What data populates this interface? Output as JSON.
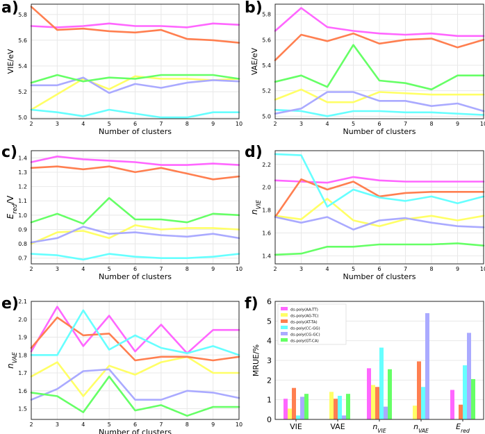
{
  "figure": {
    "background": "#ffffff"
  },
  "chart_data": [
    {
      "id": "a",
      "panel_label": "a)",
      "type": "line",
      "xlabel": "Number of clusters",
      "ylabel": "VIE/eV",
      "ylabel_rotated": true,
      "xlim": [
        2,
        10
      ],
      "ylim": [
        4.99,
        5.88
      ],
      "xticks": [
        "2",
        "3",
        "4",
        "5",
        "6",
        "7",
        "8",
        "9",
        "10"
      ],
      "yticks": [
        "5.0",
        "5.2",
        "5.4",
        "5.6",
        "5.8"
      ],
      "yticks_values": [
        5.0,
        5.2,
        5.4,
        5.6,
        5.8
      ],
      "x": [
        2,
        3,
        4,
        5,
        6,
        7,
        8,
        9,
        10
      ],
      "series": [
        {
          "name": "ds-poly(AA-TT)",
          "color": "#ff66ff",
          "values": [
            5.71,
            5.7,
            5.71,
            5.73,
            5.71,
            5.71,
            5.7,
            5.73,
            5.72
          ]
        },
        {
          "name": "ds-poly(AG-TC)",
          "color": "#ffff66",
          "values": [
            5.06,
            5.18,
            5.3,
            5.22,
            5.32,
            5.3,
            5.3,
            5.29,
            5.3
          ]
        },
        {
          "name": "ds-poly(AT-TA)",
          "color": "#ff7f50",
          "values": [
            5.86,
            5.68,
            5.69,
            5.67,
            5.66,
            5.68,
            5.61,
            5.6,
            5.58
          ]
        },
        {
          "name": "ds-poly(CC-GG)",
          "color": "#66ffff",
          "values": [
            5.06,
            5.04,
            5.01,
            5.06,
            5.03,
            5.0,
            5.0,
            5.04,
            5.04
          ]
        },
        {
          "name": "ds-poly(CG-GC)",
          "color": "#aaaaff",
          "values": [
            5.25,
            5.25,
            5.31,
            5.19,
            5.26,
            5.23,
            5.27,
            5.29,
            5.28
          ]
        },
        {
          "name": "ds-poly(GT-CA)",
          "color": "#66ff66",
          "values": [
            5.27,
            5.33,
            5.28,
            5.31,
            5.3,
            5.33,
            5.33,
            5.33,
            5.3
          ]
        }
      ]
    },
    {
      "id": "b",
      "panel_label": "b)",
      "type": "line",
      "xlabel": "Number of clusters",
      "ylabel": "VAE/eV",
      "ylabel_rotated": true,
      "xlim": [
        2,
        10
      ],
      "ylim": [
        4.98,
        5.88
      ],
      "xticks": [
        "2",
        "3",
        "4",
        "5",
        "6",
        "7",
        "8",
        "9",
        "10"
      ],
      "yticks": [
        "5.0",
        "5.2",
        "5.4",
        "5.6",
        "5.8"
      ],
      "yticks_values": [
        5.0,
        5.2,
        5.4,
        5.6,
        5.8
      ],
      "x": [
        2,
        3,
        4,
        5,
        6,
        7,
        8,
        9,
        10
      ],
      "series": [
        {
          "name": "ds-poly(AA-TT)",
          "color": "#ff66ff",
          "values": [
            5.67,
            5.85,
            5.7,
            5.67,
            5.65,
            5.64,
            5.65,
            5.63,
            5.63
          ]
        },
        {
          "name": "ds-poly(AG-TC)",
          "color": "#ffff66",
          "values": [
            5.13,
            5.21,
            5.11,
            5.11,
            5.19,
            5.18,
            5.17,
            5.17,
            5.17
          ]
        },
        {
          "name": "ds-poly(AT-TA)",
          "color": "#ff7f50",
          "values": [
            5.44,
            5.64,
            5.59,
            5.65,
            5.57,
            5.6,
            5.61,
            5.54,
            5.6
          ]
        },
        {
          "name": "ds-poly(CC-GG)",
          "color": "#66ffff",
          "values": [
            5.05,
            5.04,
            5.0,
            5.04,
            5.04,
            5.03,
            5.03,
            5.02,
            5.01
          ]
        },
        {
          "name": "ds-poly(CG-GC)",
          "color": "#aaaaff",
          "values": [
            5.02,
            5.06,
            5.19,
            5.19,
            5.12,
            5.12,
            5.08,
            5.1,
            5.04
          ]
        },
        {
          "name": "ds-poly(GT-CA)",
          "color": "#66ff66",
          "values": [
            5.27,
            5.32,
            5.23,
            5.56,
            5.28,
            5.26,
            5.21,
            5.32,
            5.32
          ]
        }
      ]
    },
    {
      "id": "c",
      "panel_label": "c)",
      "type": "line",
      "xlabel": "Number of clusters",
      "ylabel_main": "E",
      "ylabel_sub": "red",
      "ylabel_suffix": "/V",
      "ylabel_rotated": true,
      "xlim": [
        2,
        10
      ],
      "ylim": [
        0.66,
        1.45
      ],
      "xticks": [
        "2",
        "3",
        "4",
        "5",
        "6",
        "7",
        "8",
        "9",
        "10"
      ],
      "yticks": [
        "0.7",
        "0.8",
        "0.9",
        "1.0",
        "1.1",
        "1.2",
        "1.3",
        "1.4"
      ],
      "yticks_values": [
        0.7,
        0.8,
        0.9,
        1.0,
        1.1,
        1.2,
        1.3,
        1.4
      ],
      "x": [
        2,
        3,
        4,
        5,
        6,
        7,
        8,
        9,
        10
      ],
      "series": [
        {
          "name": "ds-poly(AA-TT)",
          "color": "#ff66ff",
          "values": [
            1.37,
            1.41,
            1.39,
            1.38,
            1.37,
            1.35,
            1.35,
            1.36,
            1.35
          ]
        },
        {
          "name": "ds-poly(AG-TC)",
          "color": "#ffff66",
          "values": [
            0.8,
            0.88,
            0.89,
            0.84,
            0.93,
            0.9,
            0.91,
            0.91,
            0.9
          ]
        },
        {
          "name": "ds-poly(AT-TA)",
          "color": "#ff7f50",
          "values": [
            1.33,
            1.34,
            1.32,
            1.34,
            1.3,
            1.33,
            1.29,
            1.25,
            1.27
          ]
        },
        {
          "name": "ds-poly(CC-GG)",
          "color": "#66ffff",
          "values": [
            0.73,
            0.72,
            0.69,
            0.73,
            0.71,
            0.7,
            0.7,
            0.71,
            0.73
          ]
        },
        {
          "name": "ds-poly(CG-GC)",
          "color": "#aaaaff",
          "values": [
            0.81,
            0.84,
            0.92,
            0.87,
            0.88,
            0.86,
            0.85,
            0.87,
            0.84
          ]
        },
        {
          "name": "ds-poly(GT-CA)",
          "color": "#66ff66",
          "values": [
            0.95,
            1.01,
            0.94,
            1.12,
            0.97,
            0.97,
            0.95,
            1.01,
            1.0
          ]
        }
      ]
    },
    {
      "id": "d",
      "panel_label": "d)",
      "type": "line",
      "xlabel": "Number of clusters",
      "ylabel_main": "n",
      "ylabel_sub": "VIE",
      "ylabel_rotated": true,
      "xlim": [
        2,
        10
      ],
      "ylim": [
        1.33,
        2.32
      ],
      "xticks": [
        "2",
        "3",
        "4",
        "5",
        "6",
        "7",
        "8",
        "9",
        "10"
      ],
      "yticks": [
        "1.4",
        "1.6",
        "1.8",
        "2.0",
        "2.2"
      ],
      "yticks_values": [
        1.4,
        1.6,
        1.8,
        2.0,
        2.2
      ],
      "x": [
        2,
        3,
        4,
        5,
        6,
        7,
        8,
        9,
        10
      ],
      "series": [
        {
          "name": "ds-poly(AA-TT)",
          "color": "#ff66ff",
          "values": [
            2.06,
            2.05,
            2.04,
            2.09,
            2.06,
            2.05,
            2.05,
            2.05,
            2.05
          ]
        },
        {
          "name": "ds-poly(AG-TC)",
          "color": "#ffff66",
          "values": [
            1.75,
            1.72,
            1.9,
            1.71,
            1.66,
            1.72,
            1.75,
            1.71,
            1.75
          ]
        },
        {
          "name": "ds-poly(AT-TA)",
          "color": "#ff7f50",
          "values": [
            1.74,
            2.07,
            1.98,
            2.05,
            1.92,
            1.95,
            1.96,
            1.96,
            1.96
          ]
        },
        {
          "name": "ds-poly(CC-GG)",
          "color": "#66ffff",
          "values": [
            2.29,
            2.28,
            1.83,
            1.98,
            1.91,
            1.88,
            1.92,
            1.86,
            1.92
          ]
        },
        {
          "name": "ds-poly(CG-GC)",
          "color": "#aaaaff",
          "values": [
            1.74,
            1.69,
            1.74,
            1.63,
            1.71,
            1.73,
            1.69,
            1.66,
            1.65
          ]
        },
        {
          "name": "ds-poly(GT-CA)",
          "color": "#66ff66",
          "values": [
            1.41,
            1.42,
            1.48,
            1.48,
            1.5,
            1.5,
            1.5,
            1.51,
            1.49
          ]
        }
      ]
    },
    {
      "id": "e",
      "panel_label": "e)",
      "type": "line",
      "xlabel": "Number of clusters",
      "ylabel_main": "n",
      "ylabel_sub": "VAE",
      "ylabel_rotated": true,
      "xlim": [
        2,
        10
      ],
      "ylim": [
        1.44,
        2.1
      ],
      "xticks": [
        "2",
        "3",
        "4",
        "5",
        "6",
        "7",
        "8",
        "9",
        "10"
      ],
      "yticks": [
        "1.5",
        "1.6",
        "1.7",
        "1.8",
        "1.9",
        "2.0",
        "2.1"
      ],
      "yticks_values": [
        1.5,
        1.6,
        1.7,
        1.8,
        1.9,
        2.0,
        2.1
      ],
      "x": [
        2,
        3,
        4,
        5,
        6,
        7,
        8,
        9,
        10
      ],
      "series": [
        {
          "name": "ds-poly(AA-TT)",
          "color": "#ff66ff",
          "values": [
            1.82,
            2.07,
            1.85,
            2.02,
            1.82,
            1.97,
            1.81,
            1.94,
            1.94
          ]
        },
        {
          "name": "ds-poly(AG-TC)",
          "color": "#ffff66",
          "values": [
            1.68,
            1.76,
            1.57,
            1.74,
            1.69,
            1.76,
            1.79,
            1.7,
            1.7
          ]
        },
        {
          "name": "ds-poly(AT-TA)",
          "color": "#ff7f50",
          "values": [
            1.84,
            2.01,
            1.91,
            1.92,
            1.77,
            1.79,
            1.79,
            1.77,
            1.79
          ]
        },
        {
          "name": "ds-poly(CC-GG)",
          "color": "#66ffff",
          "values": [
            1.8,
            1.8,
            2.05,
            1.83,
            1.91,
            1.84,
            1.81,
            1.85,
            1.8
          ]
        },
        {
          "name": "ds-poly(CG-GC)",
          "color": "#aaaaff",
          "values": [
            1.55,
            1.61,
            1.71,
            1.72,
            1.55,
            1.55,
            1.6,
            1.59,
            1.56
          ]
        },
        {
          "name": "ds-poly(GT-CA)",
          "color": "#66ff66",
          "values": [
            1.59,
            1.57,
            1.48,
            1.68,
            1.49,
            1.52,
            1.46,
            1.51,
            1.51
          ]
        }
      ]
    },
    {
      "id": "f",
      "panel_label": "f)",
      "type": "bar",
      "ylabel": "MRUE/%",
      "ylabel_rotated": true,
      "ylim": [
        0,
        6
      ],
      "yticks": [
        "0",
        "1",
        "2",
        "3",
        "4",
        "5",
        "6"
      ],
      "yticks_values": [
        0,
        1,
        2,
        3,
        4,
        5,
        6
      ],
      "category_ticks": [
        {
          "main": "VIE"
        },
        {
          "main": "VAE"
        },
        {
          "main": "n",
          "sub": "VIE",
          "italic": true
        },
        {
          "main": "n",
          "sub": "VAE",
          "italic": true
        },
        {
          "main": "E",
          "sub": "red",
          "italic": true
        }
      ],
      "legend_placement": "top-left",
      "series": [
        {
          "name": "ds-poly(AA-TT)",
          "color": "#ff66ff",
          "values": [
            1.05,
            0.0,
            2.6,
            0.0,
            1.5
          ]
        },
        {
          "name": "ds-poly(AG-TC)",
          "color": "#ffff66",
          "values": [
            0.55,
            1.4,
            1.75,
            0.7,
            0.0
          ]
        },
        {
          "name": "ds-poly(AT-TA)",
          "color": "#ff7f50",
          "values": [
            1.6,
            1.05,
            1.65,
            2.95,
            0.75
          ]
        },
        {
          "name": "ds-poly(CC-GG)",
          "color": "#66ffff",
          "values": [
            0.2,
            1.2,
            3.65,
            1.65,
            2.75
          ]
        },
        {
          "name": "ds-poly(CG-GC)",
          "color": "#aaaaff",
          "values": [
            1.15,
            0.2,
            0.65,
            5.4,
            4.4
          ]
        },
        {
          "name": "ds-poly(GT-CA)",
          "color": "#66ff66",
          "values": [
            1.3,
            1.3,
            2.55,
            0.0,
            2.05
          ]
        }
      ]
    }
  ]
}
